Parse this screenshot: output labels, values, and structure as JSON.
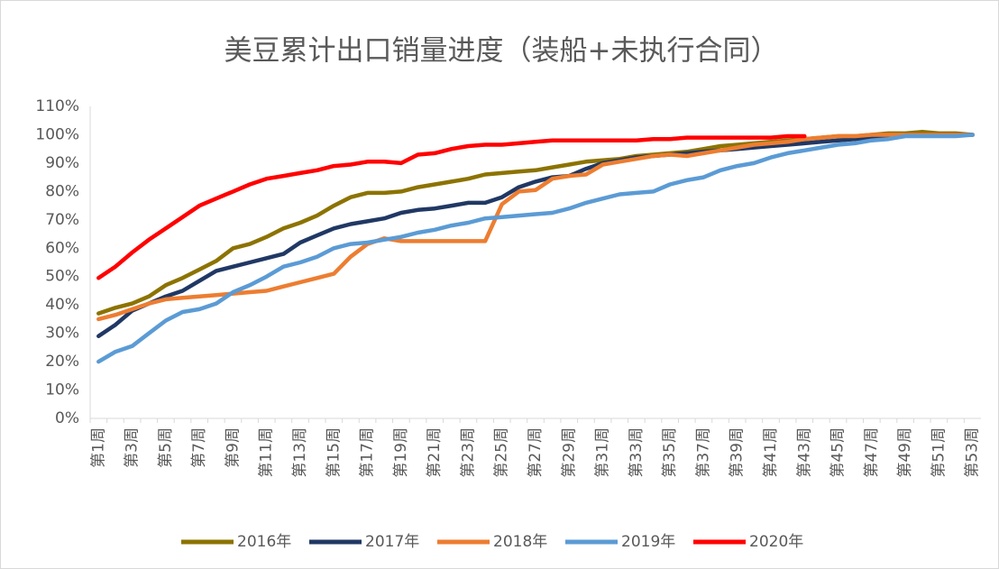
{
  "chart_data": {
    "type": "line",
    "title": "美豆累计出口销量进度（装船+未执行合同）",
    "categories": [
      "第1周",
      null,
      "第3周",
      null,
      "第5周",
      null,
      "第7周",
      null,
      "第9周",
      null,
      "第11周",
      null,
      "第13周",
      null,
      "第15周",
      null,
      "第17周",
      null,
      "第19周",
      null,
      "第21周",
      null,
      "第23周",
      null,
      "第25周",
      null,
      "第27周",
      null,
      "第29周",
      null,
      "第31周",
      null,
      "第33周",
      null,
      "第35周",
      null,
      "第37周",
      null,
      "第39周",
      null,
      "第41周",
      null,
      "第43周",
      null,
      "第45周",
      null,
      "第47周",
      null,
      "第49周",
      null,
      "第51周",
      null,
      "第53周"
    ],
    "ylim": [
      0,
      110
    ],
    "yticks": [
      {
        "value": 0,
        "label": "0%"
      },
      {
        "value": 10,
        "label": "10%"
      },
      {
        "value": 20,
        "label": "20%"
      },
      {
        "value": 30,
        "label": "30%"
      },
      {
        "value": 40,
        "label": "40%"
      },
      {
        "value": 50,
        "label": "50%"
      },
      {
        "value": 60,
        "label": "60%"
      },
      {
        "value": 70,
        "label": "70%"
      },
      {
        "value": 80,
        "label": "80%"
      },
      {
        "value": 90,
        "label": "90%"
      },
      {
        "value": 100,
        "label": "100%"
      },
      {
        "value": 110,
        "label": "110%"
      }
    ],
    "grid": false,
    "legend": "bottom",
    "series": [
      {
        "name": "2016年",
        "color": "#8c7300",
        "values": [
          37,
          39,
          40.5,
          43,
          47,
          49.5,
          52.5,
          55.5,
          60,
          61.5,
          64,
          67,
          69,
          71.5,
          75,
          78,
          79.5,
          79.5,
          80,
          81.5,
          82.5,
          83.5,
          84.5,
          86,
          86.5,
          87,
          87.5,
          88.5,
          89.5,
          90.5,
          91,
          91.5,
          92.5,
          93,
          93.5,
          94,
          95,
          96,
          96.5,
          97,
          97.5,
          98,
          98.5,
          99,
          99.5,
          99.5,
          100,
          100.5,
          100.5,
          101,
          100.5,
          100.5,
          100
        ]
      },
      {
        "name": "2017年",
        "color": "#203864",
        "values": [
          29,
          33,
          38,
          40.5,
          43,
          45,
          48.5,
          52,
          53.5,
          55,
          56.5,
          58,
          62,
          64.5,
          67,
          68.5,
          69.5,
          70.5,
          72.5,
          73.5,
          74,
          75,
          76,
          76,
          78,
          81.5,
          83.5,
          85,
          85.5,
          88,
          90,
          91,
          92,
          92.5,
          93,
          93.5,
          94,
          94.5,
          95,
          95.5,
          96,
          96.5,
          97,
          97.5,
          98,
          98.5,
          99,
          99.5,
          100,
          100,
          100,
          100,
          100
        ]
      },
      {
        "name": "2018年",
        "color": "#ed7d31",
        "values": [
          35,
          36.5,
          38.5,
          40.5,
          42,
          42.5,
          43,
          43.5,
          44,
          44.5,
          45,
          46.5,
          48,
          49.5,
          51,
          57,
          61.5,
          63.5,
          62.5,
          62.5,
          62.5,
          62.5,
          62.5,
          62.5,
          75.5,
          80,
          80.5,
          84.5,
          85.5,
          86,
          89.5,
          90.5,
          91.5,
          92.5,
          93,
          92.5,
          93.5,
          94.5,
          95.5,
          96.5,
          97,
          97.5,
          98.5,
          99,
          99.5,
          99.5,
          100,
          100,
          100,
          100,
          100,
          100,
          100
        ]
      },
      {
        "name": "2019年",
        "color": "#5b9bd5",
        "values": [
          20,
          23.5,
          25.5,
          30,
          34.5,
          37.5,
          38.5,
          40.5,
          44.5,
          47,
          50,
          53.5,
          55,
          57,
          60,
          61.5,
          62,
          63,
          64,
          65.5,
          66.5,
          68,
          69,
          70.5,
          71,
          71.5,
          72,
          72.5,
          74,
          76,
          77.5,
          79,
          79.5,
          80,
          82.5,
          84,
          85,
          87.5,
          89,
          90,
          92,
          93.5,
          94.5,
          95.5,
          96.5,
          97,
          98,
          98.5,
          99.5,
          99.5,
          99.5,
          99.5,
          100
        ]
      },
      {
        "name": "2020年",
        "color": "#ff0000",
        "values": [
          49.5,
          53.5,
          58.5,
          63,
          67,
          71,
          75,
          77.5,
          80,
          82.5,
          84.5,
          85.5,
          86.5,
          87.5,
          89,
          89.5,
          90.5,
          90.5,
          90,
          93,
          93.5,
          95,
          96,
          96.5,
          96.5,
          97,
          97.5,
          98,
          98,
          98,
          98,
          98,
          98,
          98.5,
          98.5,
          99,
          99,
          99,
          99,
          99,
          99,
          99.5,
          99.5,
          null,
          null,
          null,
          null,
          null,
          null,
          null,
          null,
          null,
          null
        ]
      }
    ]
  }
}
